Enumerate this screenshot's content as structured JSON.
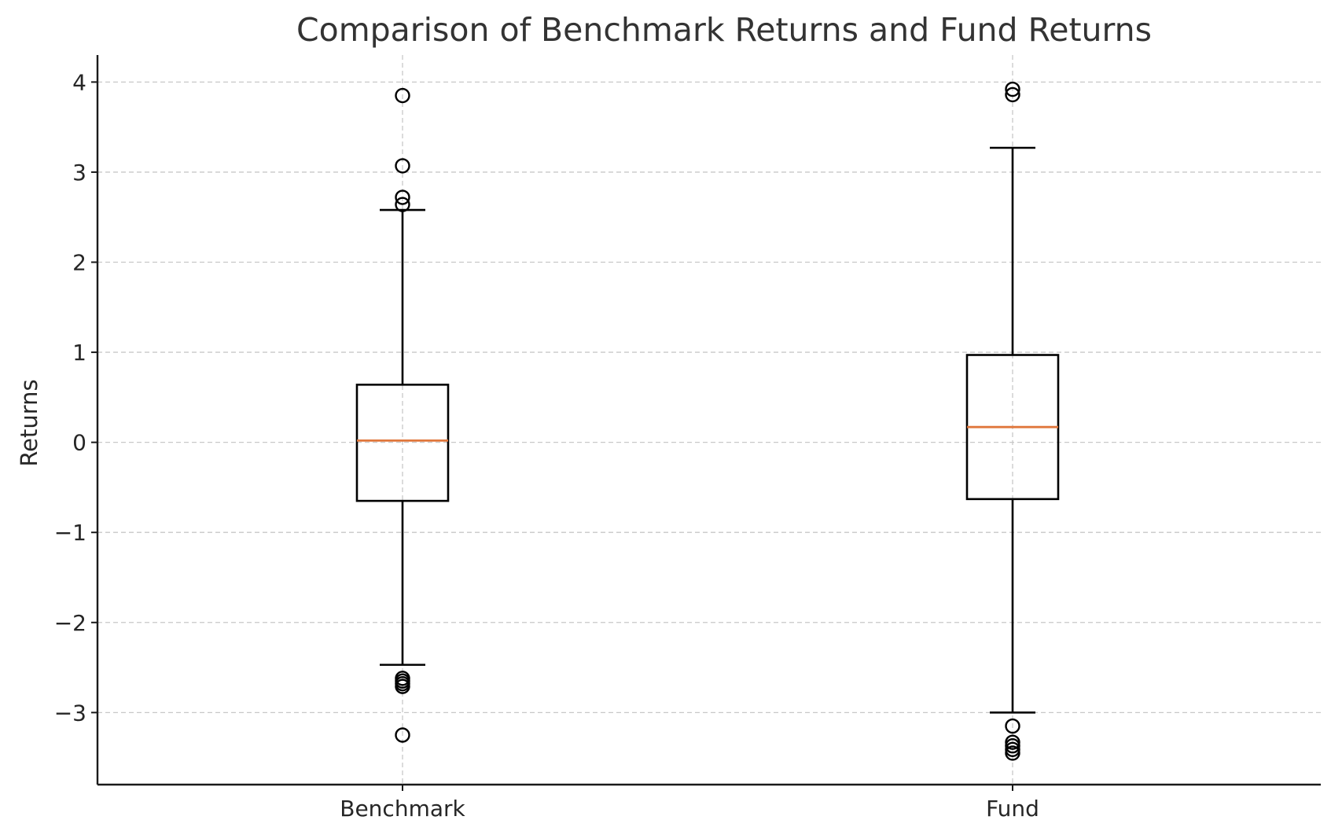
{
  "chart_data": {
    "type": "box",
    "title": "Comparison of Benchmark Returns and Fund Returns",
    "xlabel": "",
    "ylabel": "Returns",
    "ylim": [
      -3.8,
      4.3
    ],
    "yticks": [
      -3,
      -2,
      -1,
      0,
      1,
      2,
      3,
      4
    ],
    "ytick_labels": [
      "−3",
      "−2",
      "−1",
      "0",
      "1",
      "2",
      "3",
      "4"
    ],
    "grid": true,
    "categories": [
      "Benchmark",
      "Fund"
    ],
    "series": [
      {
        "name": "Benchmark",
        "whisker_low": -2.47,
        "q1": -0.65,
        "median": 0.02,
        "q3": 0.64,
        "whisker_high": 2.58,
        "outliers": [
          3.85,
          3.07,
          2.72,
          2.64,
          -2.62,
          -2.65,
          -2.68,
          -2.71,
          -3.25
        ]
      },
      {
        "name": "Fund",
        "whisker_low": -3.0,
        "q1": -0.63,
        "median": 0.17,
        "q3": 0.97,
        "whisker_high": 3.27,
        "outliers": [
          3.92,
          3.86,
          -3.15,
          -3.33,
          -3.37,
          -3.41,
          -3.45
        ]
      }
    ],
    "colors": {
      "median": "#e0773c",
      "box": "#000000",
      "grid": "#c8c8c8"
    }
  }
}
